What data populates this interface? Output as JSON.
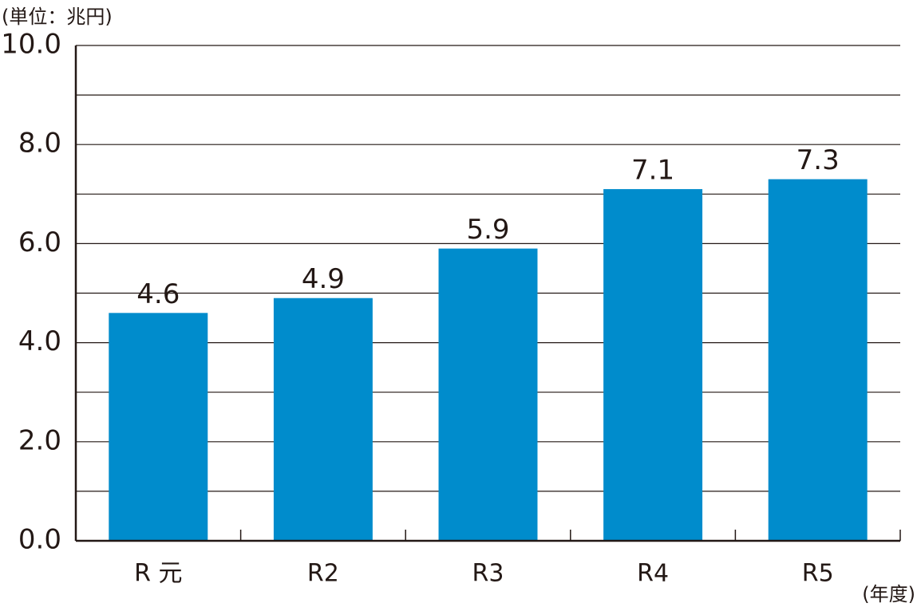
{
  "chart_data": {
    "type": "bar",
    "y_unit_label": "(単位：兆円)",
    "x_unit_label": "(年度)",
    "categories": [
      "R 元",
      "R2",
      "R3",
      "R4",
      "R5"
    ],
    "values": [
      4.6,
      4.9,
      5.9,
      7.1,
      7.3
    ],
    "color": "#008ccc",
    "ylim": [
      0,
      10
    ],
    "yticks": [
      {
        "value": 0,
        "label": "0.0"
      },
      {
        "value": 2,
        "label": "2.0"
      },
      {
        "value": 4,
        "label": "4.0"
      },
      {
        "value": 6,
        "label": "6.0"
      },
      {
        "value": 8,
        "label": "8.0"
      },
      {
        "value": 10,
        "label": "10.0"
      }
    ],
    "minor_yticks": [
      1,
      3,
      5,
      7,
      9
    ],
    "grid": true
  }
}
